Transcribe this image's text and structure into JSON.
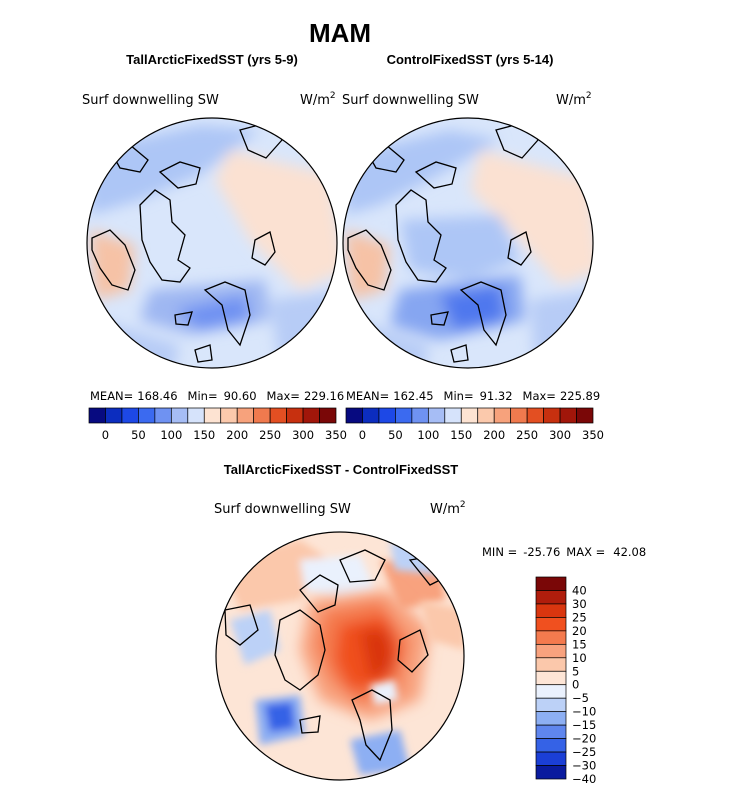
{
  "chart_data": [
    {
      "type": "heatmap",
      "projection": "north polar stereographic",
      "season": "MAM",
      "subtitle": "TallArcticFixedSST (yrs 5-9)",
      "variable": "Surf downwelling SW",
      "units_prefix": "W/m",
      "units_sup": "2",
      "stats": {
        "mean_label": "MEAN=",
        "mean": "168.46",
        "min_label": "Min=",
        "min": "90.60",
        "max_label": "Max=",
        "max": "229.16"
      },
      "levels": [
        0,
        25,
        50,
        75,
        100,
        125,
        150,
        175,
        200,
        225,
        250,
        275,
        300,
        325,
        350
      ],
      "colorbar_ticks": [
        "0",
        "50",
        "100",
        "150",
        "200",
        "250",
        "300",
        "350"
      ]
    },
    {
      "type": "heatmap",
      "projection": "north polar stereographic",
      "season": "MAM",
      "subtitle": "ControlFixedSST (yrs 5-14)",
      "variable": "Surf downwelling SW",
      "units_prefix": "W/m",
      "units_sup": "2",
      "stats": {
        "mean_label": "MEAN=",
        "mean": "162.45",
        "min_label": "Min=",
        "min": "91.32",
        "max_label": "Max=",
        "max": "225.89"
      },
      "levels": [
        0,
        25,
        50,
        75,
        100,
        125,
        150,
        175,
        200,
        225,
        250,
        275,
        300,
        325,
        350
      ],
      "colorbar_ticks": [
        "0",
        "50",
        "100",
        "150",
        "200",
        "250",
        "300",
        "350"
      ]
    },
    {
      "type": "heatmap",
      "projection": "north polar stereographic",
      "season": "MAM",
      "subtitle": "TallArcticFixedSST - ControlFixedSST",
      "variable": "Surf downwelling SW",
      "units_prefix": "W/m",
      "units_sup": "2",
      "stats": {
        "min_label": "MIN =",
        "min": "-25.76",
        "max_label": "MAX =",
        "max": "42.08"
      },
      "levels": [
        -40,
        -30,
        -25,
        -20,
        -15,
        -10,
        -5,
        0,
        5,
        10,
        15,
        20,
        25,
        30,
        40
      ],
      "colorbar_labels": [
        "40",
        "30",
        "25",
        "20",
        "15",
        "10",
        "5",
        "0",
        "−5",
        "−10",
        "−15",
        "−20",
        "−25",
        "−30",
        "−40"
      ]
    }
  ],
  "page": {
    "title": "MAM"
  },
  "colors": {
    "abs_palette": [
      "#070a80",
      "#0c2dbf",
      "#1d48e6",
      "#3b6af0",
      "#6f92f2",
      "#a6bdf5",
      "#d6e3fb",
      "#fde3d2",
      "#fbc9ac",
      "#f7a27c",
      "#f07a4e",
      "#e34f22",
      "#c7300f",
      "#a1160a",
      "#7a0707"
    ],
    "diff_palette": [
      "#7a0707",
      "#b01d0c",
      "#d9360f",
      "#f0501f",
      "#f47a4e",
      "#f8a27e",
      "#fbc8ab",
      "#fde5d6",
      "#eaf1fd",
      "#bcd1f7",
      "#8daff3",
      "#5f86ee",
      "#3562e6",
      "#1b3fd6",
      "#0a1b9e"
    ]
  }
}
